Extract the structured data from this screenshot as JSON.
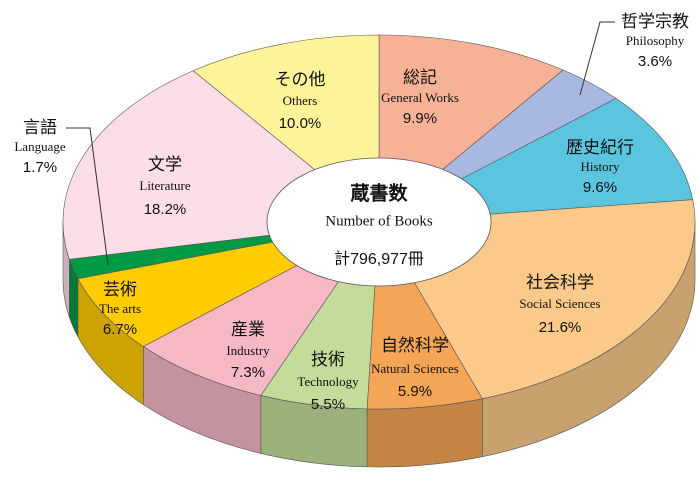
{
  "chart_data": {
    "type": "pie",
    "title": "蔵書数",
    "subtitle": "Number of Books",
    "total_label": "計796,977冊",
    "categories": [
      "総記",
      "哲学宗教",
      "歴史紀行",
      "社会科学",
      "自然科学",
      "技術",
      "産業",
      "芸術",
      "言語",
      "文学",
      "その他"
    ],
    "categories_en": [
      "General Works",
      "Philosophy",
      "History",
      "Social Sciences",
      "Natural Sciences",
      "Technology",
      "Industry",
      "The arts",
      "Language",
      "Literature",
      "Others"
    ],
    "values": [
      9.9,
      3.6,
      9.6,
      21.6,
      5.9,
      5.5,
      7.3,
      6.7,
      1.7,
      18.2,
      10.0
    ],
    "value_labels": [
      "9.9%",
      "3.6%",
      "9.6%",
      "21.6%",
      "5.9%",
      "5.5%",
      "7.3%",
      "6.7%",
      "1.7%",
      "18.2%",
      "10.0%"
    ],
    "colors": [
      "#f7b196",
      "#a9b8e0",
      "#5bc5e0",
      "#fbc98a",
      "#f4a555",
      "#c3dc9a",
      "#f5b8c4",
      "#ffcc00",
      "#009944",
      "#fcdde8",
      "#fdf49a"
    ]
  }
}
